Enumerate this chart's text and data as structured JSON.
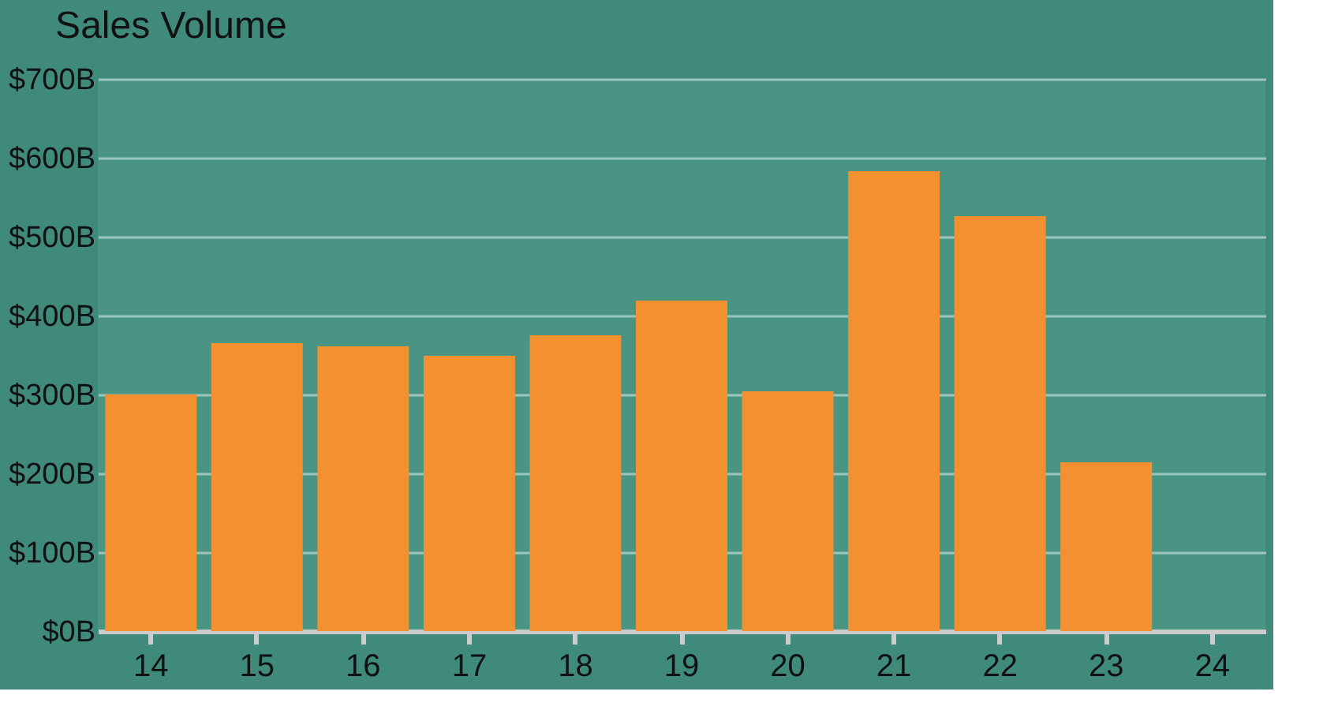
{
  "chart_data": {
    "type": "bar",
    "title": "Sales Volume",
    "categories": [
      "14",
      "15",
      "16",
      "17",
      "18",
      "19",
      "20",
      "21",
      "22",
      "23",
      "24"
    ],
    "values": [
      300,
      365,
      361,
      349,
      375,
      419,
      304,
      583,
      526,
      214,
      null
    ],
    "color": "#f39130",
    "ylim": [
      0,
      700
    ],
    "yticks": [
      {
        "value": 0,
        "label": "$0B"
      },
      {
        "value": 100,
        "label": "$100B"
      },
      {
        "value": 200,
        "label": "$200B"
      },
      {
        "value": 300,
        "label": "$300B"
      },
      {
        "value": 400,
        "label": "$400B"
      },
      {
        "value": 500,
        "label": "$500B"
      },
      {
        "value": 600,
        "label": "$600B"
      },
      {
        "value": 700,
        "label": "$700B"
      }
    ],
    "grid": "y"
  }
}
